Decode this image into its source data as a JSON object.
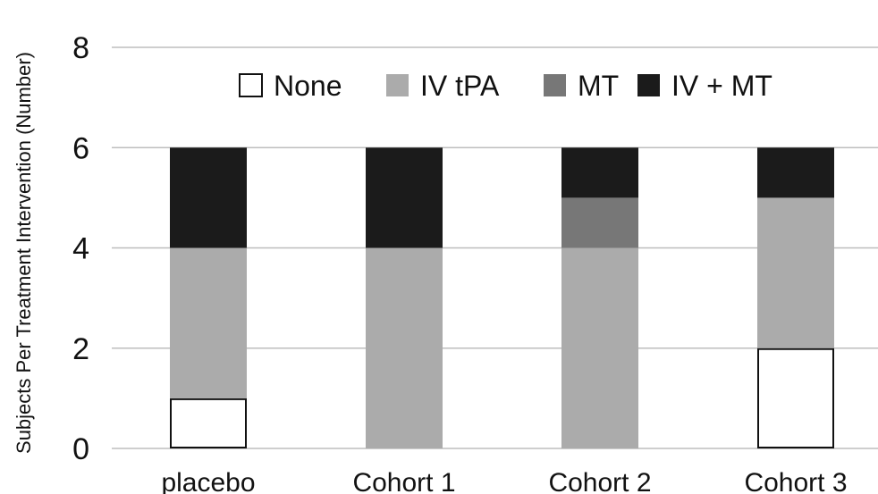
{
  "chart_data": {
    "type": "bar",
    "stacked": true,
    "categories": [
      "placebo",
      "Cohort 1",
      "Cohort 2",
      "Cohort 3"
    ],
    "series": [
      {
        "name": "None",
        "values": [
          1,
          0,
          0,
          2
        ],
        "color": "#ffffff",
        "stroke": "#111111"
      },
      {
        "name": "IV tPA",
        "values": [
          3,
          4,
          4,
          3
        ],
        "color": "#ababab"
      },
      {
        "name": "MT",
        "values": [
          0,
          0,
          1,
          0
        ],
        "color": "#777777"
      },
      {
        "name": "IV + MT",
        "values": [
          2,
          2,
          1,
          1
        ],
        "color": "#1b1b1b"
      }
    ],
    "ylabel": "Subjects Per Treatment Intervention (Number)",
    "xlabel": "",
    "ylim": [
      0,
      8
    ],
    "yticks": [
      0,
      2,
      4,
      6,
      8
    ],
    "grid": true,
    "grid_color": "#bdbdbd",
    "legend_position": "top"
  }
}
